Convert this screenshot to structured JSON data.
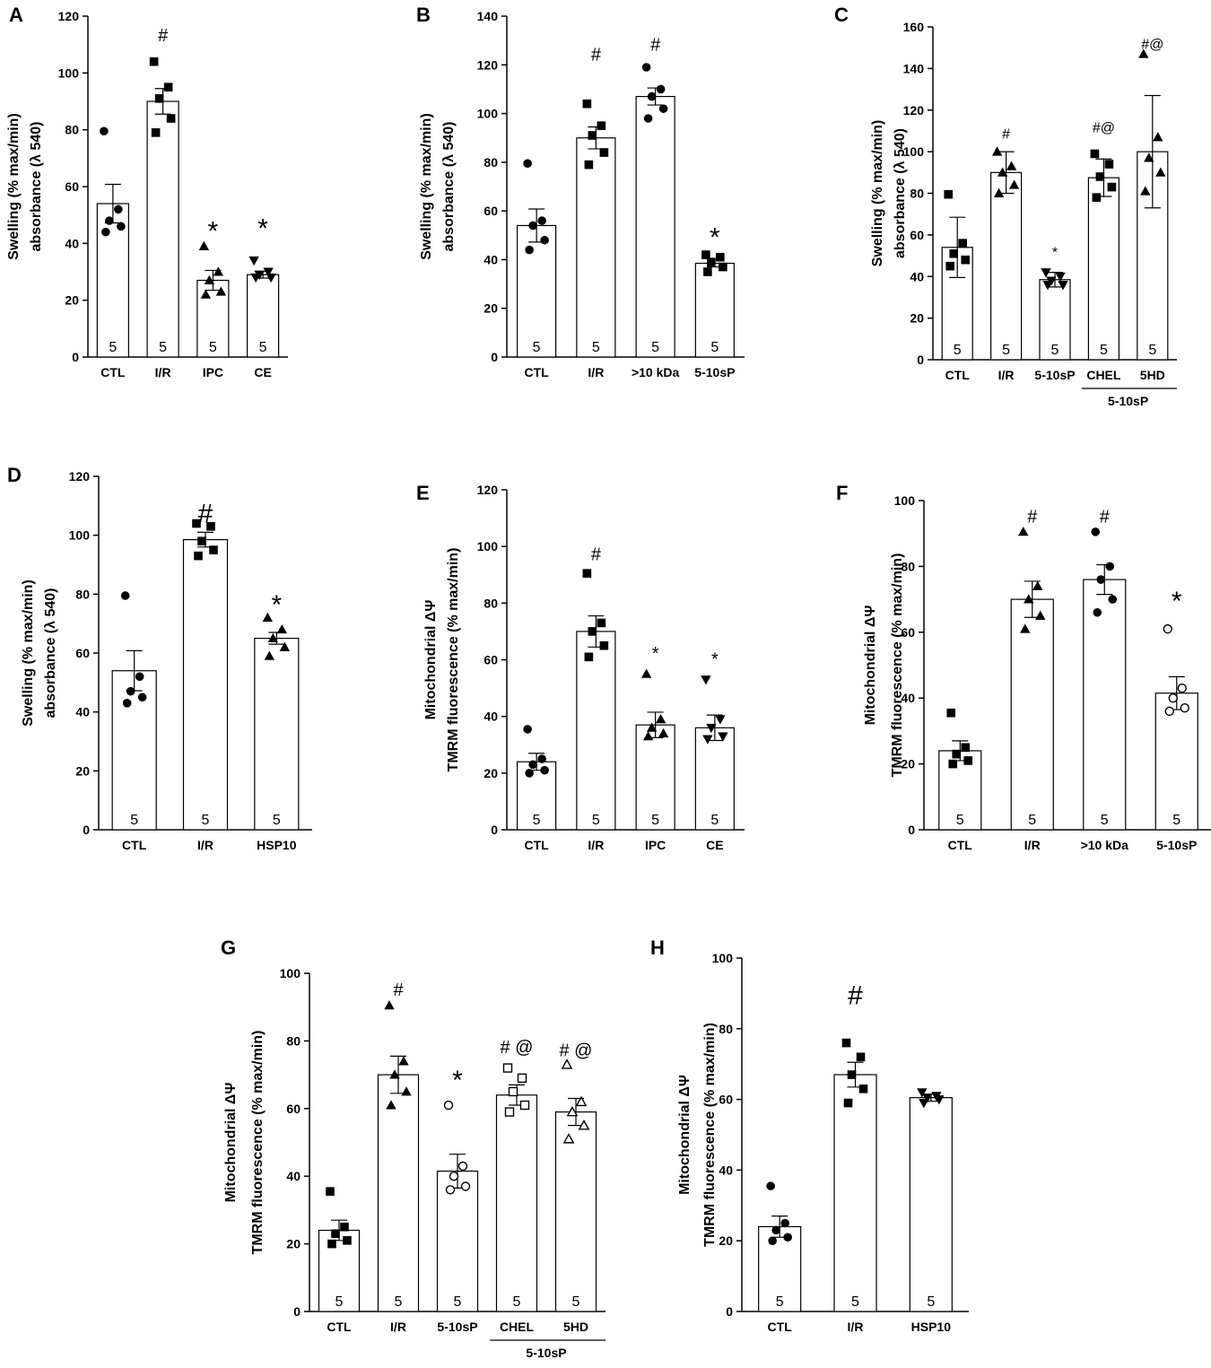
{
  "chart_data": [
    {
      "panel": "A",
      "type": "bar",
      "ylabel": [
        "Swelling (% max/min)",
        "absorbance (λ 540)"
      ],
      "ylim": [
        0,
        120
      ],
      "yticks": [
        0,
        20,
        40,
        60,
        80,
        100,
        120
      ],
      "categories": [
        "CTL",
        "I/R",
        "IPC",
        "CE"
      ],
      "values": [
        54,
        90,
        27,
        29
      ],
      "sem": [
        6.8,
        4.5,
        3.5,
        1.2
      ],
      "n": [
        "5",
        "5",
        "5",
        "5"
      ],
      "sig": [
        "",
        "#",
        "*",
        "*"
      ],
      "sig_y": [
        0,
        113,
        45,
        46
      ],
      "sig_size": [
        "",
        "small",
        "big",
        "big"
      ],
      "markers": [
        "circle",
        "square",
        "triangle",
        "invtriangle"
      ],
      "marker_fill": [
        "filled",
        "filled",
        "filled",
        "filled"
      ],
      "points": [
        [
          79.5,
          52,
          48,
          46,
          44
        ],
        [
          104,
          95,
          91,
          84,
          79
        ],
        [
          39,
          30,
          27,
          23,
          22
        ],
        [
          34,
          30,
          29,
          28,
          28
        ]
      ]
    },
    {
      "panel": "B",
      "type": "bar",
      "ylabel": [
        "Swelling (% max/min)",
        "absorbance (λ 540)"
      ],
      "ylim": [
        0,
        140
      ],
      "yticks": [
        0,
        20,
        40,
        60,
        80,
        100,
        120,
        140
      ],
      "categories": [
        "CTL",
        "I/R",
        ">10 kDa",
        "5-10sP"
      ],
      "values": [
        54,
        90,
        107,
        38.5
      ],
      "sem": [
        6.8,
        4.5,
        3.5,
        1.5
      ],
      "n": [
        "5",
        "5",
        "5",
        "5"
      ],
      "sig": [
        "",
        "#",
        "#",
        "*"
      ],
      "sig_y": [
        0,
        124,
        128,
        50
      ],
      "sig_size": [
        "",
        "small",
        "small",
        "big"
      ],
      "markers": [
        "circle",
        "square",
        "circle",
        "square"
      ],
      "marker_fill": [
        "filled",
        "filled",
        "filled",
        "filled"
      ],
      "points": [
        [
          79.5,
          56,
          54,
          48,
          44
        ],
        [
          104,
          95,
          91,
          84,
          79
        ],
        [
          119,
          110,
          107,
          102,
          98
        ],
        [
          42,
          41,
          39,
          37,
          35
        ]
      ]
    },
    {
      "panel": "C",
      "type": "bar",
      "ylabel": [
        "Swelling (% max/min)",
        "absorbance (λ 540)"
      ],
      "ylim": [
        0,
        160
      ],
      "yticks": [
        0,
        20,
        40,
        60,
        80,
        100,
        120,
        140,
        160
      ],
      "categories": [
        "CTL",
        "I/R",
        "5-10sP",
        "CHEL",
        "5HD"
      ],
      "group_label": "5-10sP",
      "group_span": [
        3,
        4
      ],
      "values": [
        54,
        90,
        38.5,
        87.5,
        100
      ],
      "sem": [
        14.5,
        10,
        3.5,
        9,
        27
      ],
      "n": [
        "5",
        "5",
        "5",
        "5",
        "5"
      ],
      "sig": [
        "",
        "#",
        "*",
        "#@",
        "#@"
      ],
      "sig_y": [
        0,
        109,
        52,
        112,
        152
      ],
      "sig_size": [
        "",
        "tiny",
        "tiny",
        "tiny",
        "tiny"
      ],
      "markers": [
        "square",
        "triangle",
        "invtriangle",
        "square",
        "triangle"
      ],
      "marker_fill": [
        "filled",
        "filled",
        "filled",
        "filled",
        "filled"
      ],
      "points": [
        [
          79.5,
          56,
          51,
          48,
          45
        ],
        [
          100,
          93,
          90,
          84,
          80
        ],
        [
          42,
          40,
          38,
          36,
          36
        ],
        [
          99,
          94,
          88,
          83,
          78
        ],
        [
          147,
          107,
          97,
          90,
          81
        ]
      ]
    },
    {
      "panel": "D",
      "type": "bar",
      "ylabel": [
        "Swelling (% max/min)",
        "absorbance (λ 540)"
      ],
      "ylim": [
        0,
        120
      ],
      "yticks": [
        0,
        20,
        40,
        60,
        80,
        100,
        120
      ],
      "categories": [
        "CTL",
        "I/R",
        "HSP10"
      ],
      "values": [
        54,
        98.5,
        65
      ],
      "sem": [
        6.8,
        2.5,
        2
      ],
      "n": [
        "5",
        "5",
        "5"
      ],
      "sig": [
        "",
        "#",
        "*"
      ],
      "sig_y": [
        0,
        108,
        77
      ],
      "sig_size": [
        "",
        "big",
        "big"
      ],
      "markers": [
        "circle",
        "square",
        "triangle"
      ],
      "marker_fill": [
        "filled",
        "filled",
        "filled"
      ],
      "points": [
        [
          79.5,
          52,
          47,
          45,
          43
        ],
        [
          104,
          103,
          98,
          95,
          93
        ],
        [
          72,
          68,
          65,
          62,
          59
        ]
      ]
    },
    {
      "panel": "E",
      "type": "bar",
      "ylabel": [
        "Mitochondrial ΔΨ",
        "TMRM  fluorescence (% max/min)"
      ],
      "ylim": [
        0,
        120
      ],
      "yticks": [
        0,
        20,
        40,
        60,
        80,
        100,
        120
      ],
      "categories": [
        "CTL",
        "I/R",
        "IPC",
        "CE"
      ],
      "values": [
        24,
        70,
        37,
        36
      ],
      "sem": [
        3,
        5.5,
        4.5,
        4.5
      ],
      "n": [
        "5",
        "5",
        "5",
        "5"
      ],
      "sig": [
        "",
        "#",
        "*",
        "*"
      ],
      "sig_y": [
        0,
        97,
        62,
        60
      ],
      "sig_size": [
        "",
        "small",
        "small",
        "small"
      ],
      "markers": [
        "circle",
        "square",
        "triangle",
        "invtriangle"
      ],
      "marker_fill": [
        "filled",
        "filled",
        "filled",
        "filled"
      ],
      "points": [
        [
          35.5,
          25,
          23,
          21,
          20
        ],
        [
          90.5,
          73,
          70,
          65,
          61
        ],
        [
          55,
          39,
          36,
          34,
          33
        ],
        [
          53,
          39,
          36,
          33,
          32
        ]
      ]
    },
    {
      "panel": "F",
      "type": "bar",
      "ylabel": [
        "Mitochondrial ΔΨ",
        "TMRM  fluorescence (% max/min)"
      ],
      "ylim": [
        0,
        100
      ],
      "yticks": [
        0,
        20,
        40,
        60,
        80,
        100
      ],
      "categories": [
        "CTL",
        "I/R",
        ">10 kDa",
        "5-10sP"
      ],
      "values": [
        24,
        70,
        76,
        41.5
      ],
      "sem": [
        3,
        5.5,
        4.5,
        5
      ],
      "n": [
        "5",
        "5",
        "5",
        "5"
      ],
      "sig": [
        "",
        "#",
        "#",
        "*"
      ],
      "sig_y": [
        0,
        95,
        95,
        70
      ],
      "sig_size": [
        "",
        "small",
        "small",
        "big"
      ],
      "markers": [
        "square",
        "triangle",
        "circle",
        "circle"
      ],
      "marker_fill": [
        "filled",
        "filled",
        "filled",
        "open"
      ],
      "points": [
        [
          35.5,
          25,
          23,
          21,
          20
        ],
        [
          90.5,
          74,
          70,
          65,
          61
        ],
        [
          90.5,
          80,
          76,
          70,
          66
        ],
        [
          61,
          43,
          40,
          37,
          36
        ]
      ]
    },
    {
      "panel": "G",
      "type": "bar",
      "ylabel": [
        "Mitochondrial ΔΨ",
        "TMRM  fluorescence (% max/min)"
      ],
      "ylim": [
        0,
        100
      ],
      "yticks": [
        0,
        20,
        40,
        60,
        80,
        100
      ],
      "categories": [
        "CTL",
        "I/R",
        "5-10sP",
        "CHEL",
        "5HD"
      ],
      "group_label": "5-10sP",
      "group_span": [
        3,
        4
      ],
      "values": [
        24,
        70,
        41.5,
        64,
        59
      ],
      "sem": [
        3,
        5.5,
        5,
        3,
        4
      ],
      "n": [
        "5",
        "5",
        "5",
        "5",
        "5"
      ],
      "sig": [
        "",
        "#",
        "*",
        "# @",
        "# @"
      ],
      "sig_y": [
        0,
        95,
        69,
        78,
        77
      ],
      "sig_size": [
        "",
        "small",
        "big",
        "small",
        "small"
      ],
      "markers": [
        "square",
        "triangle",
        "circle",
        "square",
        "triangle"
      ],
      "marker_fill": [
        "filled",
        "filled",
        "open",
        "open",
        "open"
      ],
      "points": [
        [
          35.5,
          25,
          23,
          21,
          20
        ],
        [
          90.5,
          74,
          70,
          65,
          61
        ],
        [
          61,
          43,
          40,
          37,
          36
        ],
        [
          72,
          69,
          65,
          61,
          59
        ],
        [
          73,
          62,
          59,
          55,
          51
        ]
      ]
    },
    {
      "panel": "H",
      "type": "bar",
      "ylabel": [
        "Mitochondrial ΔΨ",
        "TMRM  fluorescence (% max/min)"
      ],
      "ylim": [
        0,
        100
      ],
      "yticks": [
        0,
        20,
        40,
        60,
        80,
        100
      ],
      "categories": [
        "CTL",
        "I/R",
        "HSP10"
      ],
      "values": [
        24,
        67,
        60.5
      ],
      "sem": [
        3,
        3.5,
        1
      ],
      "n": [
        "5",
        "5",
        "5"
      ],
      "sig": [
        "",
        "#",
        ""
      ],
      "sig_y": [
        0,
        90,
        0
      ],
      "sig_size": [
        "",
        "big",
        ""
      ],
      "markers": [
        "circle",
        "square",
        "invtriangle"
      ],
      "marker_fill": [
        "filled",
        "filled",
        "filled"
      ],
      "points": [
        [
          35.5,
          25,
          23,
          21,
          20
        ],
        [
          76,
          72,
          67,
          63,
          59
        ],
        [
          62,
          61,
          60.5,
          60,
          59
        ]
      ]
    }
  ]
}
